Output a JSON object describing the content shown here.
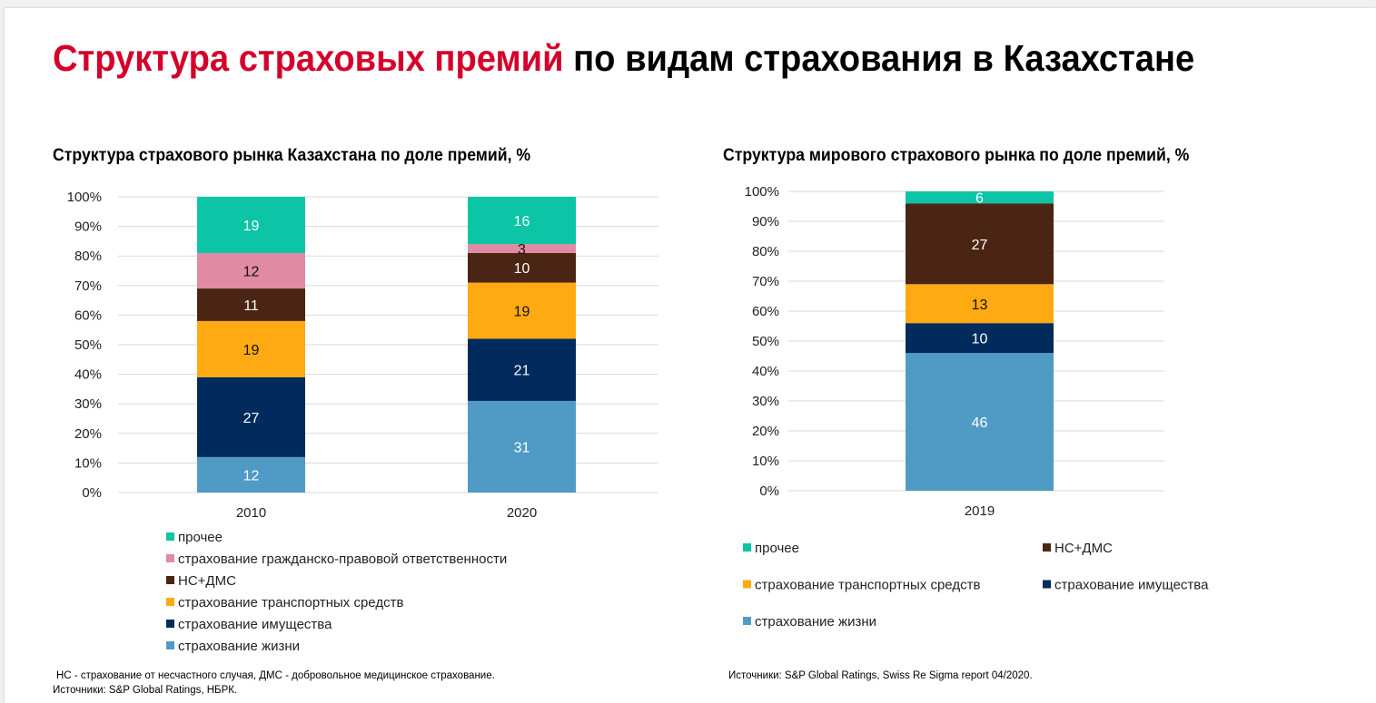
{
  "title": {
    "red": "Структура страховых премий",
    "black": "по видам страхования в Казахстане"
  },
  "colors": {
    "prochee": "#0cc4a6",
    "gpo": "#e08aa3",
    "ns": "#4a2513",
    "transport": "#ffa913",
    "imush": "#002b5c",
    "life": "#4f9bc6",
    "grid": "#d9d9d9"
  },
  "notes": {
    "left_1": "НС - страхование от несчастного случая, ДМС - добровольное медицинское страхование.",
    "left_2": "Источники: S&P Global Ratings,  НБРК.",
    "right": "Источники: S&P Global Ratings,  Swiss Re Sigma  report 04/2020."
  },
  "chart_data": [
    {
      "type": "bar",
      "stacked": true,
      "title": "Структура страхового рынка Казахстана по доле премий, %",
      "categories": [
        "2010",
        "2020"
      ],
      "ylim": [
        0,
        100
      ],
      "yticks": [
        "0%",
        "10%",
        "20%",
        "30%",
        "40%",
        "50%",
        "60%",
        "70%",
        "80%",
        "90%",
        "100%"
      ],
      "grid": true,
      "legend_position": "bottom",
      "series": [
        {
          "name": "страхование жизни",
          "key": "life",
          "values": [
            12,
            31
          ]
        },
        {
          "name": "страхование имущества",
          "key": "imush",
          "values": [
            27,
            21
          ]
        },
        {
          "name": "страхование транспортных средств",
          "key": "transport",
          "values": [
            19,
            19
          ]
        },
        {
          "name": "НС+ДМС",
          "key": "ns",
          "values": [
            11,
            10
          ]
        },
        {
          "name": "страхование гражданско-правовой ответственности",
          "key": "gpo",
          "values": [
            12,
            3
          ]
        },
        {
          "name": "прочее",
          "key": "prochee",
          "values": [
            19,
            16
          ]
        }
      ],
      "legend_order": [
        "prochee",
        "gpo",
        "ns",
        "transport",
        "imush",
        "life"
      ]
    },
    {
      "type": "bar",
      "stacked": true,
      "title": "Структура мирового страхового рынка по доле премий, %",
      "categories": [
        "2019"
      ],
      "ylim": [
        0,
        100
      ],
      "yticks": [
        "0%",
        "10%",
        "20%",
        "30%",
        "40%",
        "50%",
        "60%",
        "70%",
        "80%",
        "90%",
        "100%"
      ],
      "grid": true,
      "legend_position": "bottom",
      "series": [
        {
          "name": "страхование жизни",
          "key": "life",
          "values": [
            46
          ]
        },
        {
          "name": "страхование имущества",
          "key": "imush",
          "values": [
            10
          ]
        },
        {
          "name": "страхование транспортных средств",
          "key": "transport",
          "values": [
            13
          ]
        },
        {
          "name": "НС+ДМС",
          "key": "ns",
          "values": [
            27
          ]
        },
        {
          "name": "прочее",
          "key": "prochee",
          "values": [
            6
          ]
        }
      ],
      "legend_order": [
        "prochee",
        "ns",
        "transport",
        "imush",
        "life"
      ]
    }
  ]
}
